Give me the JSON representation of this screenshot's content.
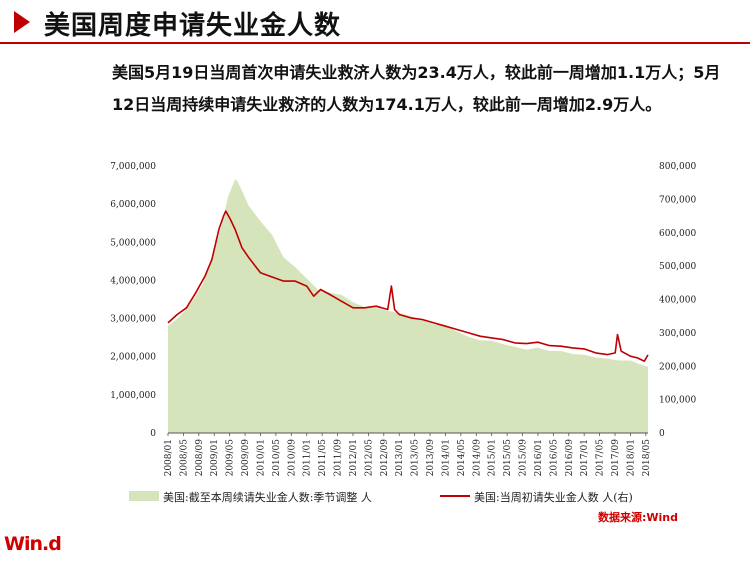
{
  "header": {
    "title": "美国周度申请失业金人数"
  },
  "summary": {
    "text": "美国5月19日当周首次申请失业救济人数为23.4万人，较此前一周增加1.1万人；5月12日当周持续申请失业救济的人数为174.1万人，较此前一周增加2.9万人。"
  },
  "chart_data": {
    "type": "line",
    "x_ticks": [
      "2008/01",
      "2008/05",
      "2008/09",
      "2009/01",
      "2009/05",
      "2009/09",
      "2010/01",
      "2010/05",
      "2010/09",
      "2011/01",
      "2011/05",
      "2011/09",
      "2012/01",
      "2012/05",
      "2012/09",
      "2013/01",
      "2013/05",
      "2013/09",
      "2014/01",
      "2014/05",
      "2014/09",
      "2015/01",
      "2015/05",
      "2015/09",
      "2016/01",
      "2016/05",
      "2016/09",
      "2017/01",
      "2017/05",
      "2017/09",
      "2018/01",
      "2018/05"
    ],
    "y_left": {
      "ylim": [
        0,
        7000000
      ],
      "ticks": [
        "0",
        "1,000,000",
        "2,000,000",
        "3,000,000",
        "4,000,000",
        "5,000,000",
        "6,000,000",
        "7,000,000"
      ]
    },
    "y_right": {
      "ylim": [
        0,
        800000
      ],
      "ticks": [
        "0",
        "100,000",
        "200,000",
        "300,000",
        "400,000",
        "500,000",
        "600,000",
        "700,000",
        "800,000"
      ]
    },
    "series": [
      {
        "name": "美国:截至本周续请失业金人数:季节调整  人",
        "axis": "left",
        "chart_type": "area",
        "color": "#d6e4bc",
        "x": [
          2008.0,
          2008.25,
          2008.5,
          2008.75,
          2009.0,
          2009.15,
          2009.3,
          2009.45,
          2009.5,
          2009.6,
          2009.75,
          2010.0,
          2010.25,
          2010.5,
          2010.75,
          2011.0,
          2011.25,
          2011.5,
          2011.75,
          2012.0,
          2012.25,
          2012.5,
          2012.75,
          2013.0,
          2013.25,
          2013.5,
          2013.75,
          2014.0,
          2014.25,
          2014.5,
          2014.75,
          2015.0,
          2015.25,
          2015.5,
          2015.75,
          2016.0,
          2016.25,
          2016.5,
          2016.75,
          2017.0,
          2017.25,
          2017.5,
          2017.75,
          2018.0,
          2018.25,
          2018.38
        ],
        "values": [
          2800000,
          3050000,
          3400000,
          3900000,
          4800000,
          5400000,
          6200000,
          6650000,
          6600000,
          6350000,
          5950000,
          5550000,
          5200000,
          4600000,
          4350000,
          4050000,
          3750000,
          3680000,
          3620000,
          3430000,
          3300000,
          3280000,
          3200000,
          3150000,
          3060000,
          2960000,
          2850000,
          2800000,
          2660000,
          2520000,
          2430000,
          2420000,
          2330000,
          2260000,
          2180000,
          2240000,
          2150000,
          2150000,
          2070000,
          2050000,
          1980000,
          1950000,
          1900000,
          1900000,
          1780000,
          1741000
        ]
      },
      {
        "name": "美国:当周初请失业金人数  人(右)",
        "axis": "right",
        "chart_type": "line",
        "color": "#c00000",
        "x": [
          2008.0,
          2008.2,
          2008.4,
          2008.6,
          2008.8,
          2008.95,
          2009.1,
          2009.2,
          2009.25,
          2009.35,
          2009.45,
          2009.6,
          2009.75,
          2010.0,
          2010.2,
          2010.5,
          2010.75,
          2011.0,
          2011.15,
          2011.3,
          2011.5,
          2011.75,
          2012.0,
          2012.25,
          2012.5,
          2012.75,
          2012.83,
          2012.9,
          2013.0,
          2013.25,
          2013.5,
          2013.75,
          2014.0,
          2014.25,
          2014.5,
          2014.75,
          2015.0,
          2015.25,
          2015.5,
          2015.75,
          2016.0,
          2016.25,
          2016.5,
          2016.75,
          2017.0,
          2017.25,
          2017.5,
          2017.67,
          2017.72,
          2017.8,
          2018.0,
          2018.15,
          2018.3,
          2018.38
        ],
        "values": [
          330000,
          355000,
          375000,
          420000,
          470000,
          520000,
          610000,
          650000,
          665000,
          640000,
          610000,
          555000,
          525000,
          480000,
          470000,
          455000,
          455000,
          440000,
          410000,
          430000,
          415000,
          395000,
          375000,
          375000,
          380000,
          370000,
          440000,
          370000,
          355000,
          345000,
          340000,
          330000,
          320000,
          310000,
          300000,
          290000,
          285000,
          280000,
          270000,
          268000,
          272000,
          262000,
          260000,
          255000,
          252000,
          240000,
          235000,
          240000,
          295000,
          245000,
          230000,
          225000,
          215000,
          234000
        ]
      }
    ]
  },
  "legend": {
    "area_label": "美国:截至本周续请失业金人数:季节调整  人",
    "line_label": "美国:当周初请失业金人数  人(右)"
  },
  "footer": {
    "source": "数据来源:Wind",
    "logo": "Win.d"
  }
}
